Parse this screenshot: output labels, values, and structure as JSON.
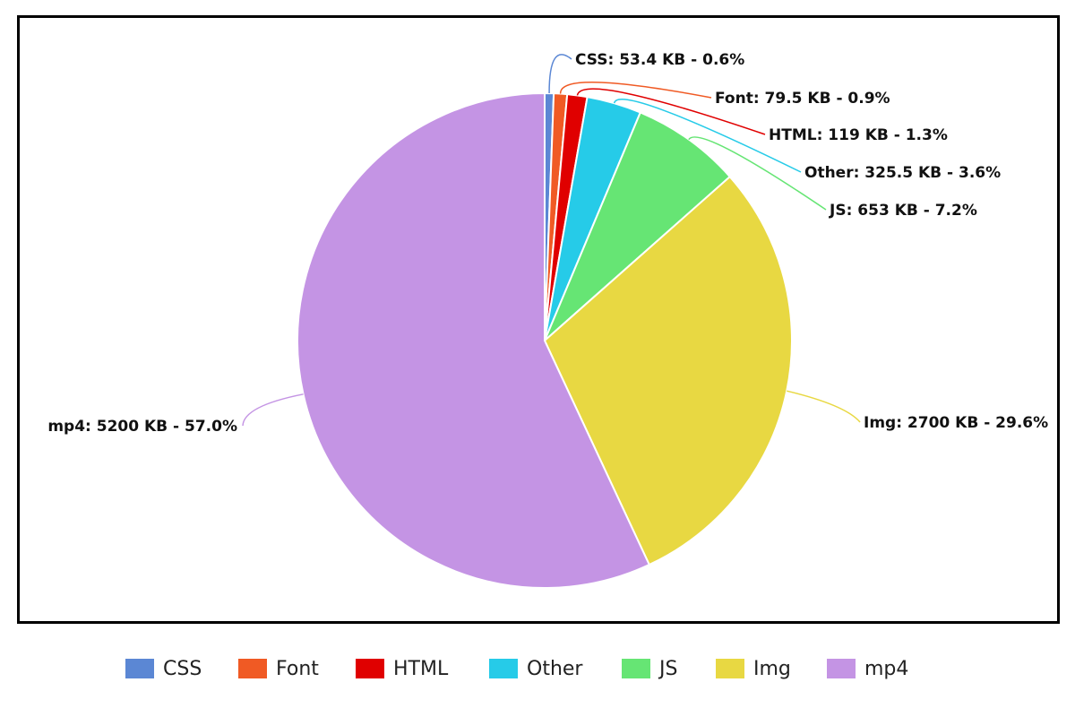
{
  "chart_data": {
    "type": "pie",
    "slices": [
      {
        "name": "CSS",
        "value": 53.4,
        "percent": 0.6,
        "label": "CSS: 53.4 KB - 0.6%",
        "color": "#5b87d4"
      },
      {
        "name": "Font",
        "value": 79.5,
        "percent": 0.9,
        "label": "Font: 79.5 KB - 0.9%",
        "color": "#f05a24"
      },
      {
        "name": "HTML",
        "value": 119,
        "percent": 1.3,
        "label": "HTML: 119 KB - 1.3%",
        "color": "#e00000"
      },
      {
        "name": "Other",
        "value": 325.5,
        "percent": 3.6,
        "label": "Other: 325.5 KB - 3.6%",
        "color": "#26cbe8"
      },
      {
        "name": "JS",
        "value": 653,
        "percent": 7.2,
        "label": "JS: 653 KB - 7.2%",
        "color": "#66e574"
      },
      {
        "name": "Img",
        "value": 2700,
        "percent": 29.6,
        "label": "Img: 2700 KB - 29.6%",
        "color": "#e8d842"
      },
      {
        "name": "mp4",
        "value": 5200,
        "percent": 57.0,
        "label": "mp4: 5200 KB - 57.0%",
        "color": "#c494e4"
      }
    ],
    "legend": {
      "position": "bottom",
      "entries": [
        "CSS",
        "Font",
        "HTML",
        "Other",
        "JS",
        "Img",
        "mp4"
      ]
    }
  }
}
